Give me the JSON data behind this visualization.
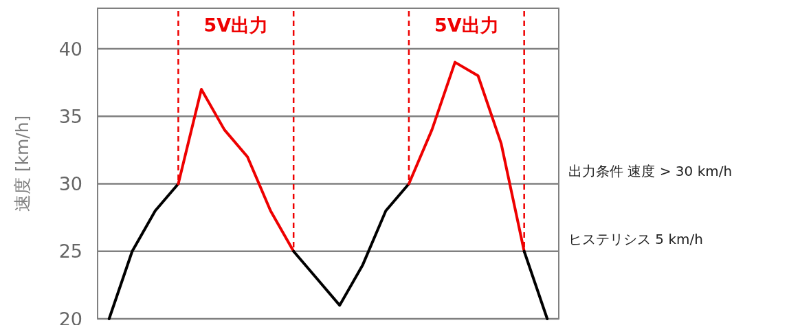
{
  "chart_data": {
    "type": "line",
    "ylabel": "速度 [km/h]",
    "categories": [
      null,
      null,
      null,
      null,
      null,
      null,
      null,
      null,
      null,
      null,
      null,
      null,
      null,
      null,
      null,
      null,
      null,
      null,
      null,
      null
    ],
    "ylim": [
      20,
      43
    ],
    "yticks": [
      20,
      25,
      30,
      35,
      40
    ],
    "grid": "y",
    "tick_labels": "y",
    "line_style": "solid",
    "marker": "none",
    "series": [
      {
        "color": "#000000",
        "values": [
          20,
          25,
          28,
          30,
          null,
          null,
          null,
          null,
          null,
          null,
          null,
          null,
          null,
          null,
          null,
          null,
          null,
          null,
          null,
          null
        ]
      },
      {
        "color": "#ee0000",
        "values": [
          null,
          null,
          null,
          30,
          37,
          34,
          32,
          28,
          25,
          null,
          null,
          null,
          null,
          null,
          null,
          null,
          null,
          null,
          null,
          null
        ]
      },
      {
        "color": "#000000",
        "values": [
          null,
          null,
          null,
          null,
          null,
          null,
          null,
          null,
          25,
          23,
          21,
          24,
          28,
          30,
          null,
          null,
          null,
          null,
          null,
          null
        ]
      },
      {
        "color": "#ee0000",
        "values": [
          null,
          null,
          null,
          null,
          null,
          null,
          null,
          null,
          null,
          null,
          null,
          null,
          null,
          30,
          34,
          39,
          38,
          33,
          25,
          null
        ]
      },
      {
        "color": "#000000",
        "values": [
          null,
          null,
          null,
          null,
          null,
          null,
          null,
          null,
          null,
          null,
          null,
          null,
          null,
          null,
          null,
          null,
          null,
          null,
          25,
          20
        ]
      }
    ],
    "annotations": [
      "5V出力",
      "5V出力",
      "出力条件 速度 > 30 km/h",
      "ヒステリシス 5 km/h"
    ]
  }
}
